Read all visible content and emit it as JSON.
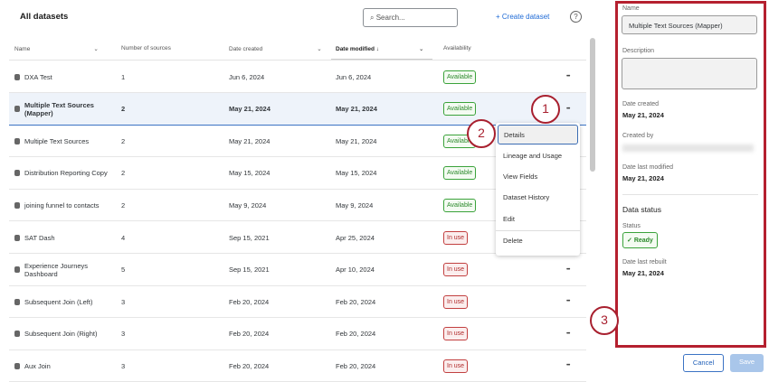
{
  "header": {
    "title": "All datasets",
    "search_placeholder": "Search...",
    "create_label": "+ Create dataset",
    "help_icon": "?"
  },
  "columns": [
    "Name",
    "Number of sources",
    "Date created",
    "Date modified ↓",
    "Availability"
  ],
  "rows": [
    {
      "name": "DXA Test",
      "sources": "1",
      "created": "Jun 6, 2024",
      "modified": "Jun 6, 2024",
      "availability": "Available"
    },
    {
      "name": "Multiple Text Sources (Mapper)",
      "sources": "2",
      "created": "May 21, 2024",
      "modified": "May 21, 2024",
      "availability": "Available"
    },
    {
      "name": "Multiple Text Sources",
      "sources": "2",
      "created": "May 21, 2024",
      "modified": "May 21, 2024",
      "availability": "Available"
    },
    {
      "name": "Distribution Reporting Copy",
      "sources": "2",
      "created": "May 15, 2024",
      "modified": "May 15, 2024",
      "availability": "Available"
    },
    {
      "name": "joining funnel to contacts",
      "sources": "2",
      "created": "May 9, 2024",
      "modified": "May 9, 2024",
      "availability": "Available"
    },
    {
      "name": "SAT Dash",
      "sources": "4",
      "created": "Sep 15, 2021",
      "modified": "Apr 25, 2024",
      "availability": "In use"
    },
    {
      "name": "Experience Journeys Dashboard",
      "sources": "5",
      "created": "Sep 15, 2021",
      "modified": "Apr 10, 2024",
      "availability": "In use"
    },
    {
      "name": "Subsequent Join (Left)",
      "sources": "3",
      "created": "Feb 20, 2024",
      "modified": "Feb 20, 2024",
      "availability": "In use"
    },
    {
      "name": "Subsequent Join (Right)",
      "sources": "3",
      "created": "Feb 20, 2024",
      "modified": "Feb 20, 2024",
      "availability": "In use"
    },
    {
      "name": "Aux Join",
      "sources": "3",
      "created": "Feb 20, 2024",
      "modified": "Feb 20, 2024",
      "availability": "In use"
    }
  ],
  "menu": [
    "Details",
    "Lineage and Usage",
    "View Fields",
    "Dataset History",
    "Edit",
    "Delete"
  ],
  "callouts": [
    "1",
    "2",
    "3"
  ],
  "panel": {
    "name_label": "Name",
    "name_value": "Multiple Text Sources (Mapper)",
    "description_label": "Description",
    "date_created_label": "Date created",
    "date_created": "May 21, 2024",
    "created_by_label": "Created by",
    "date_modified_label": "Date last modified",
    "date_modified": "May 21, 2024",
    "data_status_heading": "Data status",
    "status_label": "Status",
    "status_value": "Ready",
    "rebuilt_label": "Date last rebuilt",
    "rebuilt": "May 21, 2024",
    "cancel": "Cancel",
    "save": "Save"
  },
  "colors": {
    "accent": "#1f6bd6",
    "available": "#2c8a2c",
    "in_use": "#b02a2a",
    "callout": "#a8202f"
  }
}
